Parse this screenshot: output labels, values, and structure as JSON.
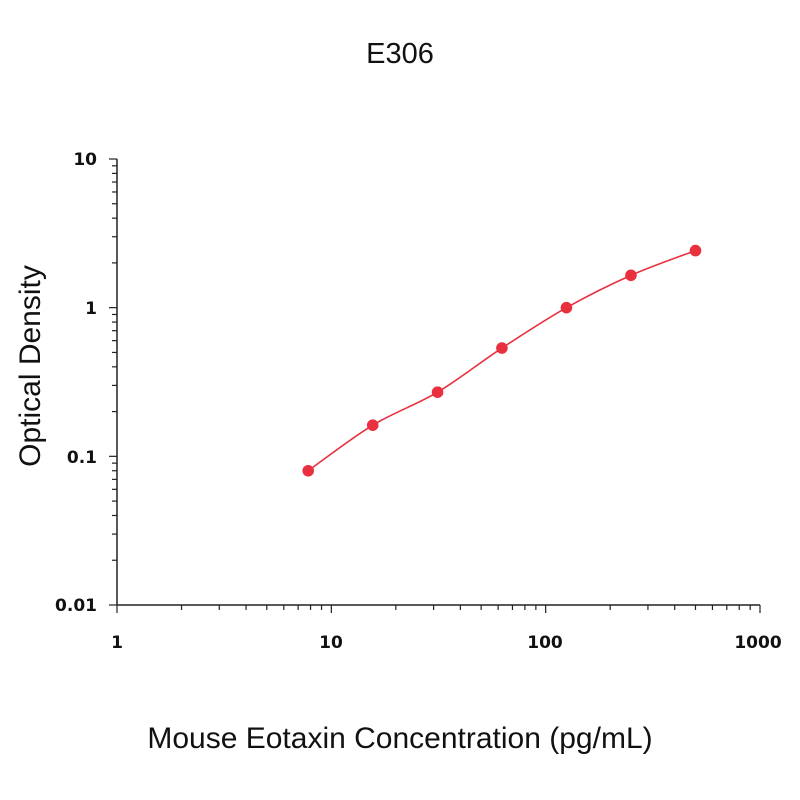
{
  "chart_data": {
    "type": "scatter",
    "title": "E306",
    "xlabel": "Mouse Eotaxin Concentration (pg/mL)",
    "ylabel": "Optical Density",
    "x_scale": "log",
    "y_scale": "log",
    "xlim": [
      1,
      1000
    ],
    "ylim": [
      0.01,
      10
    ],
    "x_ticks": [
      "1",
      "10",
      "100",
      "1000"
    ],
    "y_ticks": [
      "0.01",
      "0.1",
      "1",
      "10"
    ],
    "grid": false,
    "legend": "none",
    "series": [
      {
        "x": [
          7.8,
          15.6,
          31.3,
          62.5,
          125,
          250,
          500
        ],
        "y": [
          0.08,
          0.162,
          0.27,
          0.535,
          1.0,
          1.65,
          2.42
        ],
        "color": "#e8303e",
        "marker": "circle",
        "fit_curve": true
      }
    ]
  }
}
